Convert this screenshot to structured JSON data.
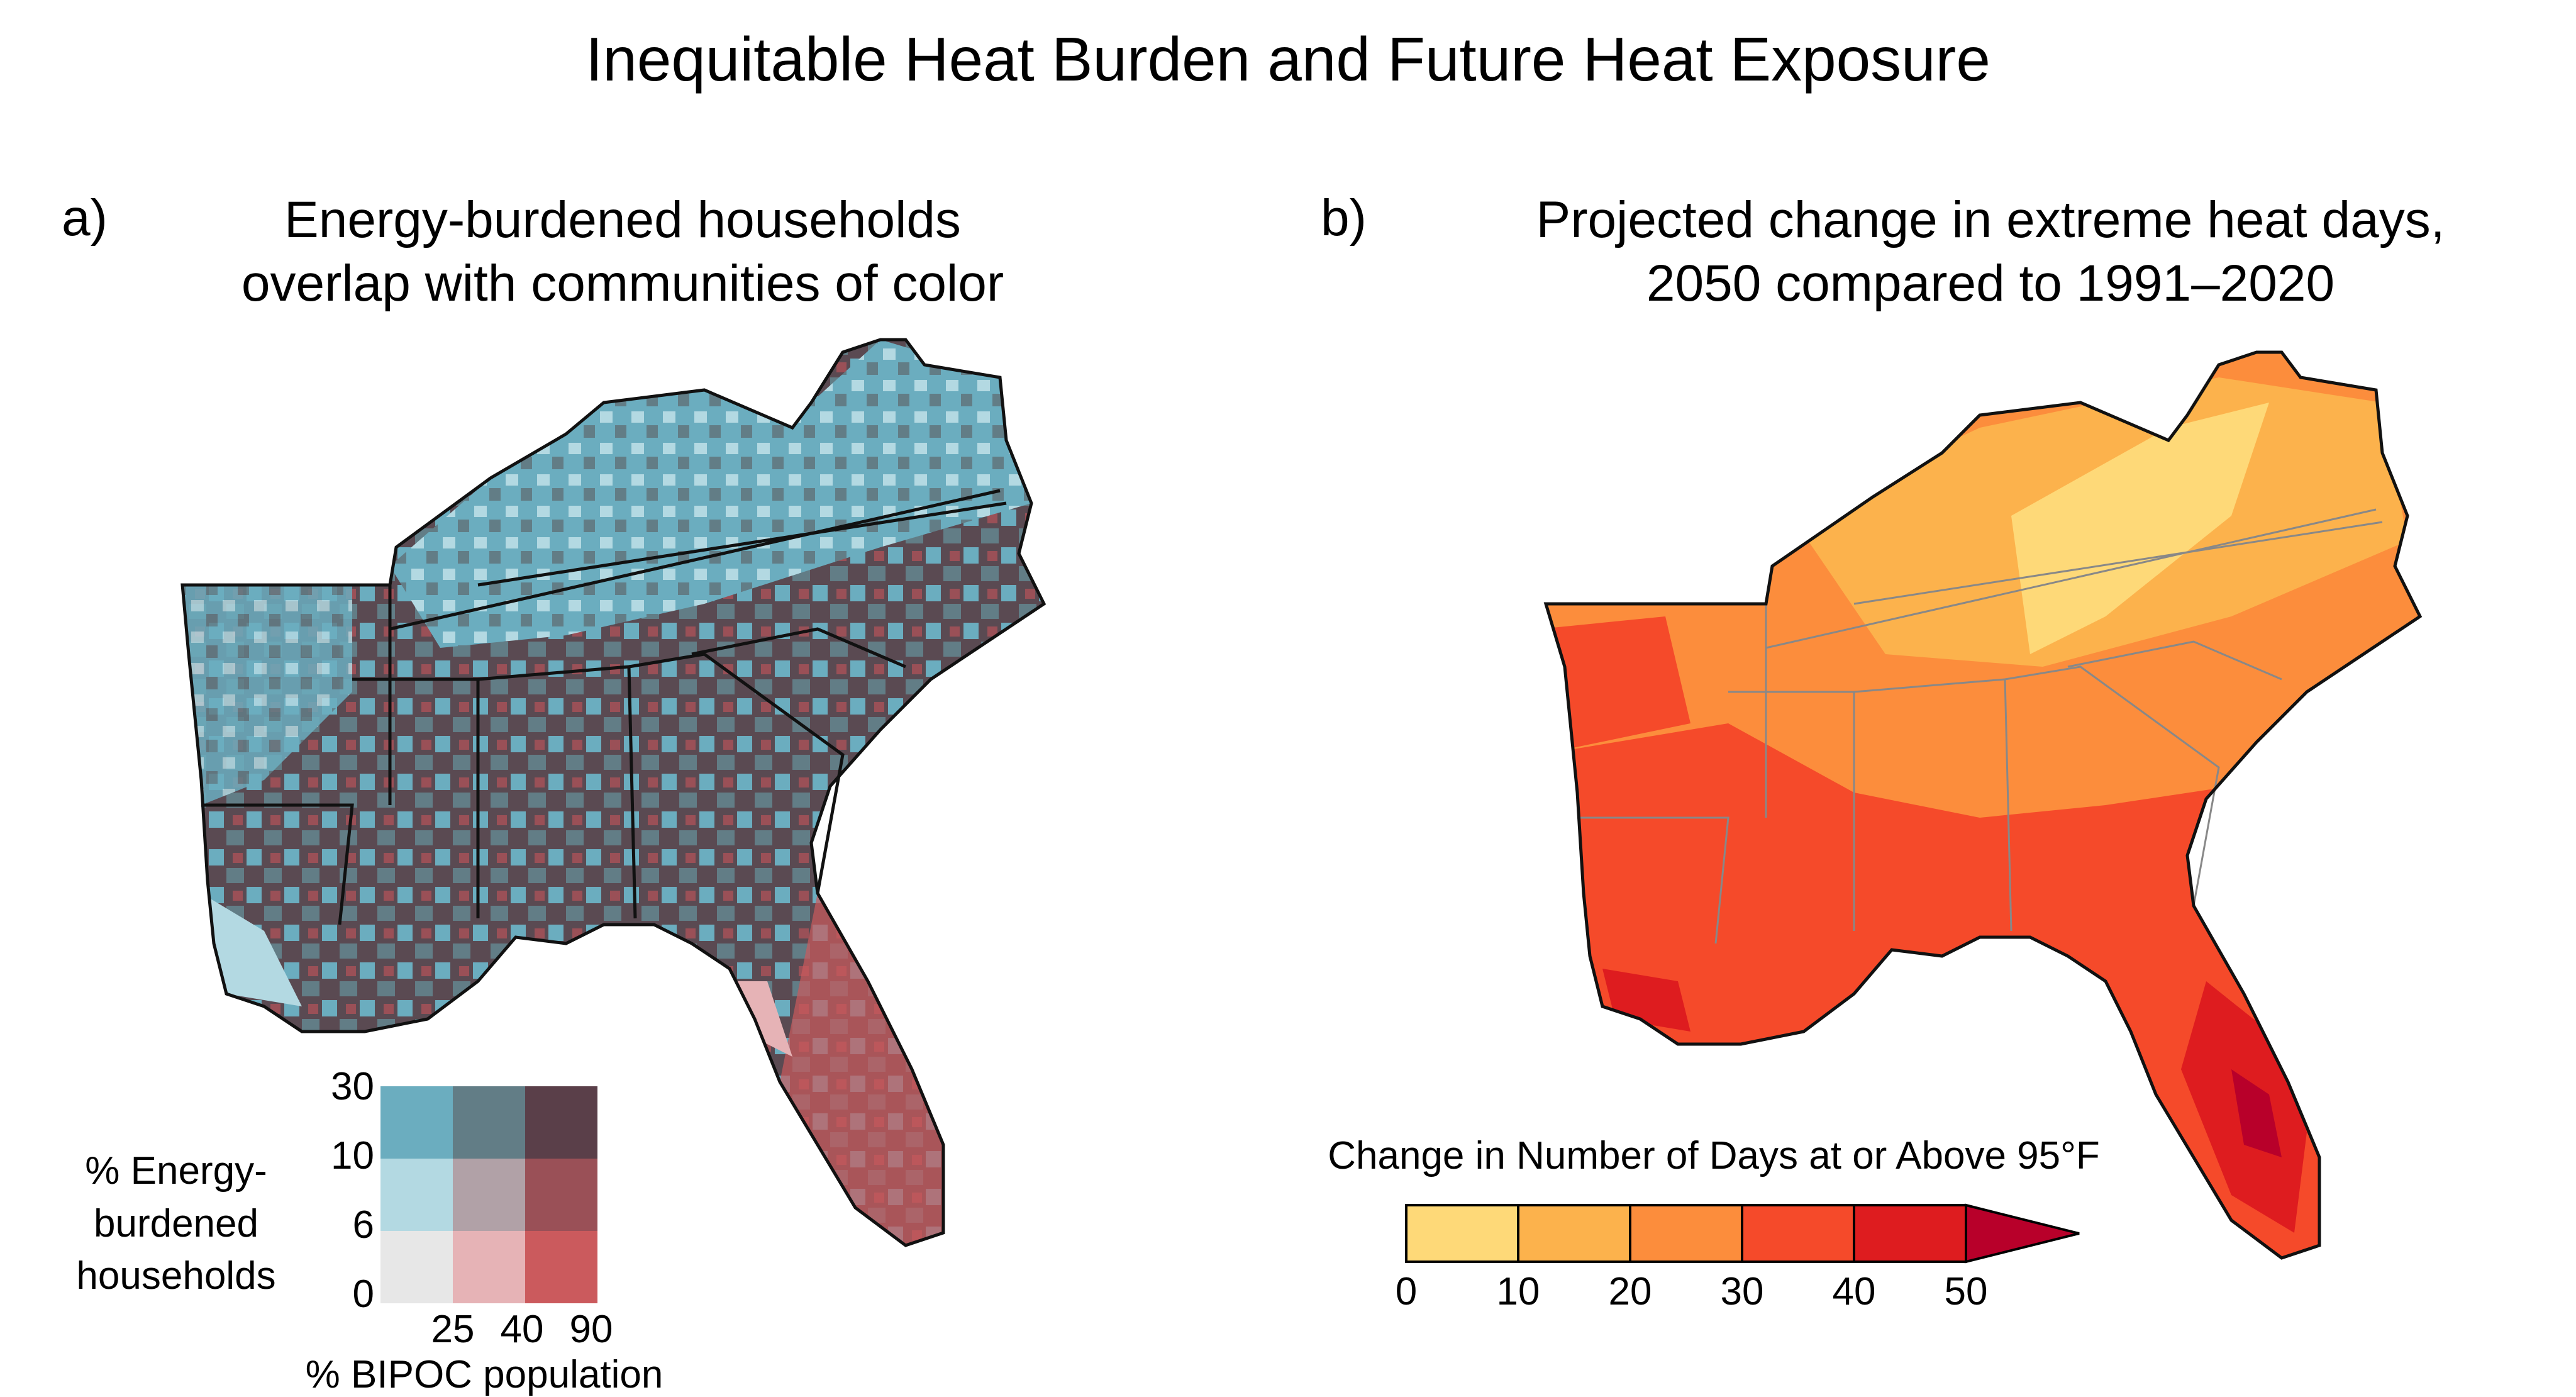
{
  "title": "Inequitable Heat Burden and Future Heat Exposure",
  "panel_a": {
    "letter": "a)",
    "subtitle_line1": "Energy-burdened households",
    "subtitle_line2": "overlap with communities of color",
    "legend": {
      "y_label_line1": "% Energy-",
      "y_label_line2": "burdened",
      "y_label_line3": "households",
      "x_label": "% BIPOC population",
      "y_ticks": [
        "30",
        "10",
        "6",
        "0"
      ],
      "x_ticks": [
        "25",
        "40",
        "90"
      ],
      "colors": [
        [
          "#6badbf",
          "#627d86",
          "#5a3f49"
        ],
        [
          "#b3d9e2",
          "#b1a1a7",
          "#9a5057"
        ],
        [
          "#e7e7e7",
          "#e6b3b6",
          "#cb5a5d"
        ]
      ]
    }
  },
  "panel_b": {
    "letter": "b)",
    "subtitle_line1": "Projected change in extreme heat days,",
    "subtitle_line2": "2050 compared to 1991–2020",
    "colorbar": {
      "label": "Change in Number of Days at or Above 95°F",
      "ticks": [
        "0",
        "10",
        "20",
        "30",
        "40",
        "50"
      ],
      "colors": [
        "#fed978",
        "#fcb24c",
        "#fc8d3c",
        "#f54a2a",
        "#de1c1f",
        "#b8002a"
      ]
    }
  }
}
